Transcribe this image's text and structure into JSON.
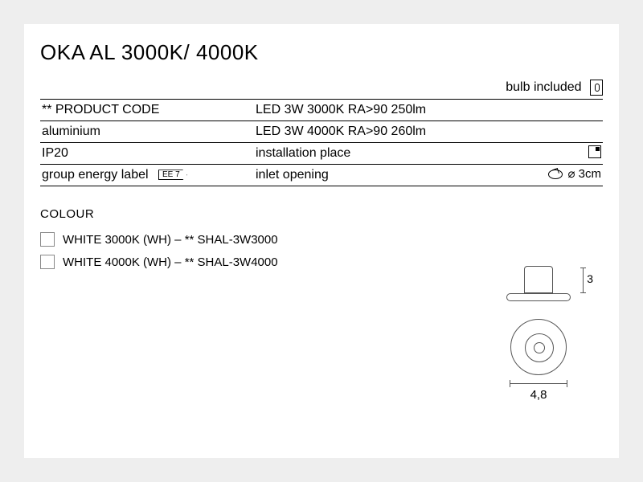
{
  "title": "OKA AL 3000K/ 4000K",
  "bulb_included": "bulb included",
  "table": {
    "rows": [
      {
        "left": "** PRODUCT CODE",
        "right": "LED 3W 3000K RA>90 250lm"
      },
      {
        "left": "aluminium",
        "right": "LED 3W 4000K RA>90 260lm"
      },
      {
        "left": "IP20",
        "right": "installation place"
      },
      {
        "left_label": "group energy label",
        "ee": "EE 7",
        "right": "inlet opening",
        "inlet_dim": "⌀ 3cm"
      }
    ]
  },
  "colour": {
    "heading": "COLOUR",
    "items": [
      "WHITE 3000K (WH) – ** SHAL-3W3000",
      "WHITE 4000K (WH) – ** SHAL-3W4000"
    ]
  },
  "dimensions": {
    "height": "3",
    "width": "4,8"
  },
  "colors": {
    "page_bg": "#eeeeee",
    "card_bg": "#ffffff",
    "line": "#000000",
    "diagram_line": "#555555"
  }
}
